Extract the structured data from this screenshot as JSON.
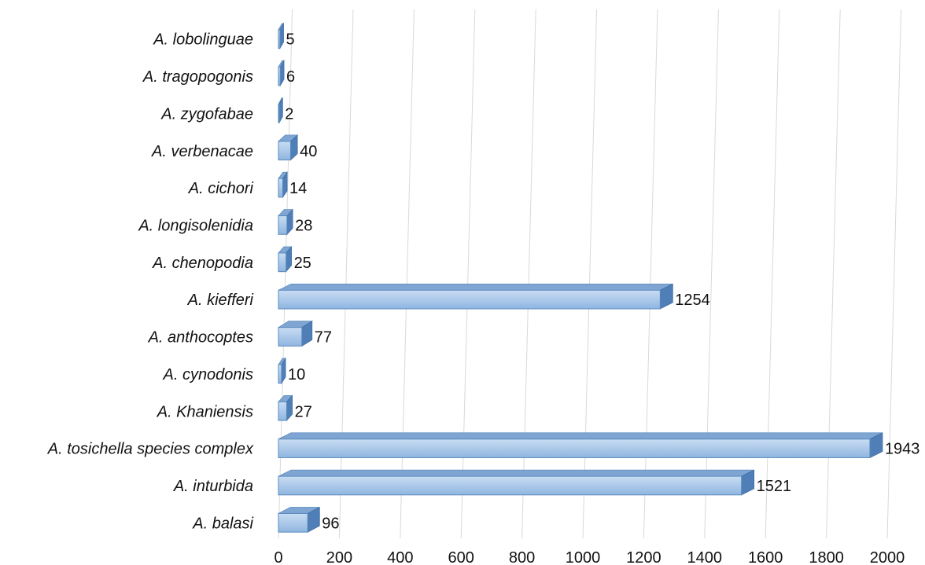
{
  "chart_data": {
    "type": "bar",
    "orientation": "horizontal",
    "title": "",
    "xlabel": "",
    "ylabel": "",
    "categories": [
      "A. lobolinguae",
      "A. tragopogonis",
      "A. zygofabae",
      "A. verbenacae",
      "A. cichori",
      "A. longisolenidia",
      "A. chenopodia",
      "A. kiefferi",
      "A. anthocoptes",
      "A. cynodonis",
      "A. Khaniensis",
      "A. tosichella species complex",
      "A. inturbida",
      "A. balasi"
    ],
    "values": [
      5,
      6,
      2,
      40,
      14,
      28,
      25,
      1254,
      77,
      10,
      27,
      1943,
      1521,
      96
    ],
    "value_labels": [
      "5",
      "6",
      "2",
      "40",
      "14",
      "28",
      "25",
      "1254",
      "77",
      "10",
      "27",
      "1943",
      "1521",
      "96"
    ],
    "xlim": [
      0,
      2000
    ],
    "xticks": [
      "0",
      "200",
      "400",
      "600",
      "800",
      "1000",
      "1200",
      "1400",
      "1600",
      "1800",
      "2000"
    ],
    "grid": true,
    "legend": "none",
    "style": "3d-bar",
    "bar_color": "#9dc3e6",
    "bar_edge_color": "#5b8bbd"
  }
}
